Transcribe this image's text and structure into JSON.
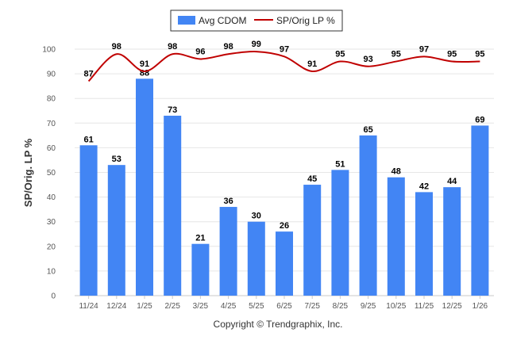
{
  "chart_data": {
    "type": "bar",
    "categories": [
      "11/24",
      "12/24",
      "1/25",
      "2/25",
      "3/25",
      "4/25",
      "5/25",
      "6/25",
      "7/25",
      "8/25",
      "9/25",
      "10/25",
      "11/25",
      "12/25",
      "1/26"
    ],
    "series": [
      {
        "name": "Avg CDOM",
        "kind": "bar",
        "color": "#4285f4",
        "values": [
          61,
          53,
          88,
          73,
          21,
          36,
          30,
          26,
          45,
          51,
          65,
          48,
          42,
          44,
          69
        ]
      },
      {
        "name": "SP/Orig LP %",
        "kind": "line",
        "color": "#c00000",
        "values": [
          87,
          98,
          91,
          98,
          96,
          98,
          99,
          97,
          91,
          95,
          93,
          95,
          97,
          95,
          95
        ]
      }
    ],
    "ylabel": "SP/Orig. LP %",
    "xlabel": "",
    "ylim": [
      0,
      100
    ],
    "yticks": [
      0,
      10,
      20,
      30,
      40,
      50,
      60,
      70,
      80,
      90,
      100
    ],
    "grid": true,
    "legend_position": "top-center",
    "footer": "Copyright © Trendgraphix, Inc."
  }
}
